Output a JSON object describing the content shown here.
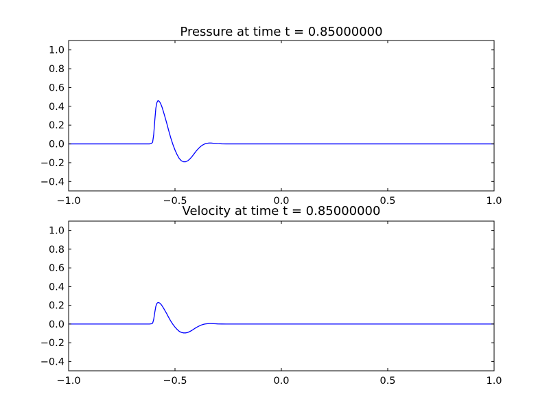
{
  "chart_data": [
    {
      "type": "line",
      "title": "Pressure at time t =     0.85000000",
      "xlim": [
        -1.0,
        1.0
      ],
      "ylim": [
        -0.5,
        1.1
      ],
      "xticks": [
        "−1.0",
        "−0.5",
        "0.0",
        "0.5",
        "1.0"
      ],
      "xtick_values": [
        -1.0,
        -0.5,
        0.0,
        0.5,
        1.0
      ],
      "yticks": [
        "−0.4",
        "−0.2",
        "0.0",
        "0.2",
        "0.4",
        "0.6",
        "0.8",
        "1.0"
      ],
      "ytick_values": [
        -0.4,
        -0.2,
        0.0,
        0.2,
        0.4,
        0.6,
        0.8,
        1.0
      ],
      "grid": false,
      "color": "#0000ff",
      "x": [
        -1.0,
        -0.7,
        -0.62,
        -0.61,
        -0.605,
        -0.6,
        -0.595,
        -0.59,
        -0.585,
        -0.58,
        -0.575,
        -0.57,
        -0.565,
        -0.56,
        -0.55,
        -0.54,
        -0.53,
        -0.52,
        -0.51,
        -0.5,
        -0.49,
        -0.48,
        -0.47,
        -0.46,
        -0.45,
        -0.44,
        -0.43,
        -0.42,
        -0.41,
        -0.4,
        -0.39,
        -0.38,
        -0.37,
        -0.36,
        -0.35,
        -0.34,
        -0.33,
        -0.32,
        -0.31,
        -0.3,
        -0.28,
        -0.26,
        -0.24,
        -0.2,
        0.0,
        0.5,
        1.0
      ],
      "y": [
        0.0,
        0.0,
        0.0,
        0.005,
        0.02,
        0.1,
        0.25,
        0.38,
        0.44,
        0.46,
        0.455,
        0.44,
        0.415,
        0.385,
        0.31,
        0.23,
        0.145,
        0.065,
        -0.005,
        -0.065,
        -0.115,
        -0.155,
        -0.18,
        -0.19,
        -0.19,
        -0.18,
        -0.16,
        -0.135,
        -0.105,
        -0.075,
        -0.05,
        -0.028,
        -0.012,
        0.0,
        0.006,
        0.009,
        0.009,
        0.007,
        0.005,
        0.003,
        0.001,
        0.0,
        0.0,
        0.0,
        0.0,
        0.0,
        0.0
      ]
    },
    {
      "type": "line",
      "title": "Velocity at time t =     0.85000000",
      "xlim": [
        -1.0,
        1.0
      ],
      "ylim": [
        -0.5,
        1.1
      ],
      "xticks": [
        "−1.0",
        "−0.5",
        "0.0",
        "0.5",
        "1.0"
      ],
      "xtick_values": [
        -1.0,
        -0.5,
        0.0,
        0.5,
        1.0
      ],
      "yticks": [
        "−0.4",
        "−0.2",
        "0.0",
        "0.2",
        "0.4",
        "0.6",
        "0.8",
        "1.0"
      ],
      "ytick_values": [
        -0.4,
        -0.2,
        0.0,
        0.2,
        0.4,
        0.6,
        0.8,
        1.0
      ],
      "grid": false,
      "color": "#0000ff",
      "x": [
        -1.0,
        -0.7,
        -0.62,
        -0.61,
        -0.605,
        -0.6,
        -0.595,
        -0.59,
        -0.585,
        -0.58,
        -0.575,
        -0.57,
        -0.565,
        -0.56,
        -0.55,
        -0.54,
        -0.53,
        -0.52,
        -0.51,
        -0.5,
        -0.49,
        -0.48,
        -0.47,
        -0.46,
        -0.45,
        -0.44,
        -0.43,
        -0.42,
        -0.41,
        -0.4,
        -0.39,
        -0.38,
        -0.37,
        -0.36,
        -0.35,
        -0.34,
        -0.33,
        -0.32,
        -0.31,
        -0.3,
        -0.28,
        -0.26,
        -0.24,
        -0.2,
        0.0,
        0.5,
        1.0
      ],
      "y": [
        0.0,
        0.0,
        0.0,
        0.003,
        0.01,
        0.05,
        0.125,
        0.19,
        0.22,
        0.23,
        0.228,
        0.22,
        0.208,
        0.192,
        0.155,
        0.115,
        0.072,
        0.032,
        -0.003,
        -0.033,
        -0.058,
        -0.078,
        -0.09,
        -0.095,
        -0.095,
        -0.09,
        -0.08,
        -0.067,
        -0.052,
        -0.037,
        -0.025,
        -0.014,
        -0.006,
        0.0,
        0.003,
        0.0045,
        0.0045,
        0.0035,
        0.0025,
        0.0015,
        0.0005,
        0.0,
        0.0,
        0.0,
        0.0,
        0.0,
        0.0
      ]
    }
  ]
}
